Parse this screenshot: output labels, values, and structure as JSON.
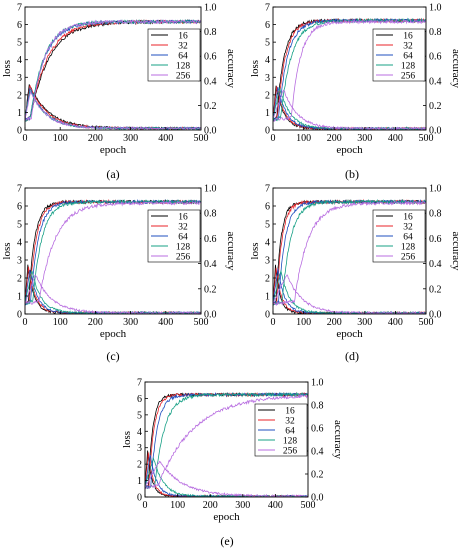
{
  "colors": {
    "16": "#000000",
    "32": "#e8232a",
    "64": "#1f4fbf",
    "128": "#17a086",
    "256": "#b86ee0",
    "axis": "#000000",
    "legend_border": "#000000"
  },
  "chart_data": [
    {
      "type": "line",
      "panel_label": "(a)",
      "xlabel": "epoch",
      "ylabel_left": "loss",
      "ylabel_right": "accuracy",
      "xlim": [
        0,
        500
      ],
      "ylim_left": [
        0,
        7
      ],
      "ylim_right": [
        0,
        1.0
      ],
      "x_ticks": [
        0,
        100,
        200,
        300,
        400,
        500
      ],
      "y_ticks_left": [
        0,
        1,
        2,
        3,
        4,
        5,
        6,
        7
      ],
      "y_ticks_right": [
        "0.0",
        "0.2",
        "0.4",
        "0.6",
        "0.8",
        "1.0"
      ],
      "legend": {
        "entries": [
          "16",
          "32",
          "64",
          "128",
          "256"
        ],
        "placement": "top-right"
      },
      "series": [
        {
          "name": "16",
          "acc": {
            "rise_epoch": 15,
            "tau": 55,
            "final": 0.88,
            "start": 0.08
          },
          "loss": {
            "peak_epoch": 12,
            "peak": 2.6,
            "decay_tau": 55,
            "final": 0.1
          }
        },
        {
          "name": "32",
          "acc": {
            "rise_epoch": 15,
            "tau": 50,
            "final": 0.88,
            "start": 0.08
          },
          "loss": {
            "peak_epoch": 14,
            "peak": 2.5,
            "decay_tau": 50,
            "final": 0.1
          }
        },
        {
          "name": "64",
          "acc": {
            "rise_epoch": 15,
            "tau": 42,
            "final": 0.88,
            "start": 0.08
          },
          "loss": {
            "peak_epoch": 14,
            "peak": 2.4,
            "decay_tau": 45,
            "final": 0.1
          }
        },
        {
          "name": "128",
          "acc": {
            "rise_epoch": 15,
            "tau": 40,
            "final": 0.88,
            "start": 0.08
          },
          "loss": {
            "peak_epoch": 15,
            "peak": 2.3,
            "decay_tau": 45,
            "final": 0.1
          }
        },
        {
          "name": "256",
          "acc": {
            "rise_epoch": 18,
            "tau": 38,
            "final": 0.88,
            "start": 0.08
          },
          "loss": {
            "peak_epoch": 16,
            "peak": 2.2,
            "decay_tau": 45,
            "final": 0.1
          }
        }
      ]
    },
    {
      "type": "line",
      "panel_label": "(b)",
      "xlabel": "epoch",
      "ylabel_left": "loss",
      "ylabel_right": "accuracy",
      "xlim": [
        0,
        500
      ],
      "ylim_left": [
        0,
        7
      ],
      "ylim_right": [
        0,
        1.0
      ],
      "x_ticks": [
        0,
        100,
        200,
        300,
        400,
        500
      ],
      "y_ticks_left": [
        0,
        1,
        2,
        3,
        4,
        5,
        6,
        7
      ],
      "y_ticks_right": [
        "0.0",
        "0.2",
        "0.4",
        "0.6",
        "0.8",
        "1.0"
      ],
      "legend": {
        "entries": [
          "16",
          "32",
          "64",
          "128",
          "256"
        ],
        "placement": "top-right"
      },
      "series": [
        {
          "name": "16",
          "acc": {
            "rise_epoch": 12,
            "tau": 25,
            "final": 0.89,
            "start": 0.08
          },
          "loss": {
            "peak_epoch": 10,
            "peak": 2.5,
            "decay_tau": 25,
            "final": 0.08
          }
        },
        {
          "name": "32",
          "acc": {
            "rise_epoch": 14,
            "tau": 27,
            "final": 0.89,
            "start": 0.08
          },
          "loss": {
            "peak_epoch": 12,
            "peak": 2.5,
            "decay_tau": 27,
            "final": 0.08
          }
        },
        {
          "name": "64",
          "acc": {
            "rise_epoch": 18,
            "tau": 30,
            "final": 0.89,
            "start": 0.08
          },
          "loss": {
            "peak_epoch": 16,
            "peak": 2.4,
            "decay_tau": 30,
            "final": 0.08
          }
        },
        {
          "name": "128",
          "acc": {
            "rise_epoch": 25,
            "tau": 35,
            "final": 0.89,
            "start": 0.08
          },
          "loss": {
            "peak_epoch": 22,
            "peak": 2.4,
            "decay_tau": 35,
            "final": 0.08
          }
        },
        {
          "name": "256",
          "acc": {
            "rise_epoch": 60,
            "tau": 30,
            "final": 0.88,
            "start": 0.08
          },
          "loss": {
            "peak_epoch": 35,
            "peak": 2.3,
            "decay_tau": 45,
            "final": 0.08
          }
        }
      ]
    },
    {
      "type": "line",
      "panel_label": "(c)",
      "xlabel": "epoch",
      "ylabel_left": "loss",
      "ylabel_right": "accuracy",
      "xlim": [
        0,
        500
      ],
      "ylim_left": [
        0,
        7
      ],
      "ylim_right": [
        0,
        1.0
      ],
      "x_ticks": [
        0,
        100,
        200,
        300,
        400,
        500
      ],
      "y_ticks_left": [
        0,
        1,
        2,
        3,
        4,
        5,
        6,
        7
      ],
      "y_ticks_right": [
        "0.0",
        "0.2",
        "0.4",
        "0.6",
        "0.8",
        "1.0"
      ],
      "legend": {
        "entries": [
          "16",
          "32",
          "64",
          "128",
          "256"
        ],
        "placement": "top-right"
      },
      "series": [
        {
          "name": "16",
          "acc": {
            "rise_epoch": 10,
            "tau": 18,
            "final": 0.89,
            "start": 0.08
          },
          "loss": {
            "peak_epoch": 8,
            "peak": 2.7,
            "decay_tau": 18,
            "final": 0.06
          }
        },
        {
          "name": "32",
          "acc": {
            "rise_epoch": 12,
            "tau": 20,
            "final": 0.89,
            "start": 0.08
          },
          "loss": {
            "peak_epoch": 10,
            "peak": 2.6,
            "decay_tau": 20,
            "final": 0.06
          }
        },
        {
          "name": "64",
          "acc": {
            "rise_epoch": 16,
            "tau": 22,
            "final": 0.89,
            "start": 0.08
          },
          "loss": {
            "peak_epoch": 14,
            "peak": 2.5,
            "decay_tau": 22,
            "final": 0.06
          }
        },
        {
          "name": "128",
          "acc": {
            "rise_epoch": 22,
            "tau": 26,
            "final": 0.89,
            "start": 0.08
          },
          "loss": {
            "peak_epoch": 20,
            "peak": 2.4,
            "decay_tau": 26,
            "final": 0.06
          }
        },
        {
          "name": "256",
          "acc": {
            "rise_epoch": 40,
            "tau": 45,
            "final": 0.88,
            "start": 0.08
          },
          "loss": {
            "peak_epoch": 30,
            "peak": 2.2,
            "decay_tau": 45,
            "final": 0.06
          }
        }
      ]
    },
    {
      "type": "line",
      "panel_label": "(d)",
      "xlabel": "epoch",
      "ylabel_left": "loss",
      "ylabel_right": "accuracy",
      "xlim": [
        0,
        500
      ],
      "ylim_left": [
        0,
        7
      ],
      "ylim_right": [
        0,
        1.0
      ],
      "x_ticks": [
        0,
        100,
        200,
        300,
        400,
        500
      ],
      "y_ticks_left": [
        0,
        1,
        2,
        3,
        4,
        5,
        6,
        7
      ],
      "y_ticks_right": [
        "0.0",
        "0.2",
        "0.4",
        "0.6",
        "0.8",
        "1.0"
      ],
      "legend": {
        "entries": [
          "16",
          "32",
          "64",
          "128",
          "256"
        ],
        "placement": "top-right"
      },
      "series": [
        {
          "name": "16",
          "acc": {
            "rise_epoch": 10,
            "tau": 16,
            "final": 0.89,
            "start": 0.08
          },
          "loss": {
            "peak_epoch": 8,
            "peak": 2.7,
            "decay_tau": 16,
            "final": 0.05
          }
        },
        {
          "name": "32",
          "acc": {
            "rise_epoch": 12,
            "tau": 18,
            "final": 0.89,
            "start": 0.08
          },
          "loss": {
            "peak_epoch": 10,
            "peak": 2.6,
            "decay_tau": 18,
            "final": 0.05
          }
        },
        {
          "name": "64",
          "acc": {
            "rise_epoch": 18,
            "tau": 22,
            "final": 0.89,
            "start": 0.08
          },
          "loss": {
            "peak_epoch": 16,
            "peak": 2.5,
            "decay_tau": 22,
            "final": 0.05
          }
        },
        {
          "name": "128",
          "acc": {
            "rise_epoch": 30,
            "tau": 28,
            "final": 0.89,
            "start": 0.08
          },
          "loss": {
            "peak_epoch": 26,
            "peak": 2.4,
            "decay_tau": 28,
            "final": 0.05
          }
        },
        {
          "name": "256",
          "acc": {
            "rise_epoch": 70,
            "tau": 45,
            "final": 0.88,
            "start": 0.08
          },
          "loss": {
            "peak_epoch": 45,
            "peak": 2.2,
            "decay_tau": 50,
            "final": 0.05
          }
        }
      ]
    },
    {
      "type": "line",
      "panel_label": "(e)",
      "xlabel": "epoch",
      "ylabel_left": "loss",
      "ylabel_right": "accuracy",
      "xlim": [
        0,
        500
      ],
      "ylim_left": [
        0,
        7
      ],
      "ylim_right": [
        0,
        1.0
      ],
      "x_ticks": [
        0,
        100,
        200,
        300,
        400,
        500
      ],
      "y_ticks_left": [
        0,
        1,
        2,
        3,
        4,
        5,
        6,
        7
      ],
      "y_ticks_right": [
        "0.0",
        "0.2",
        "0.4",
        "0.6",
        "0.8",
        "1.0"
      ],
      "legend": {
        "entries": [
          "16",
          "32",
          "64",
          "128",
          "256"
        ],
        "placement": "top-right"
      },
      "series": [
        {
          "name": "16",
          "acc": {
            "rise_epoch": 10,
            "tau": 14,
            "final": 0.89,
            "start": 0.08
          },
          "loss": {
            "peak_epoch": 8,
            "peak": 2.8,
            "decay_tau": 14,
            "final": 0.04
          }
        },
        {
          "name": "32",
          "acc": {
            "rise_epoch": 12,
            "tau": 16,
            "final": 0.89,
            "start": 0.08
          },
          "loss": {
            "peak_epoch": 10,
            "peak": 2.7,
            "decay_tau": 16,
            "final": 0.04
          }
        },
        {
          "name": "64",
          "acc": {
            "rise_epoch": 18,
            "tau": 20,
            "final": 0.89,
            "start": 0.08
          },
          "loss": {
            "peak_epoch": 16,
            "peak": 2.6,
            "decay_tau": 20,
            "final": 0.04
          }
        },
        {
          "name": "128",
          "acc": {
            "rise_epoch": 30,
            "tau": 30,
            "final": 0.89,
            "start": 0.08
          },
          "loss": {
            "peak_epoch": 26,
            "peak": 2.4,
            "decay_tau": 30,
            "final": 0.04
          }
        },
        {
          "name": "256",
          "acc": {
            "rise_epoch": 40,
            "tau": 110,
            "final": 0.89,
            "start": 0.08
          },
          "loss": {
            "peak_epoch": 45,
            "peak": 2.2,
            "decay_tau": 70,
            "final": 0.05
          }
        }
      ]
    }
  ]
}
